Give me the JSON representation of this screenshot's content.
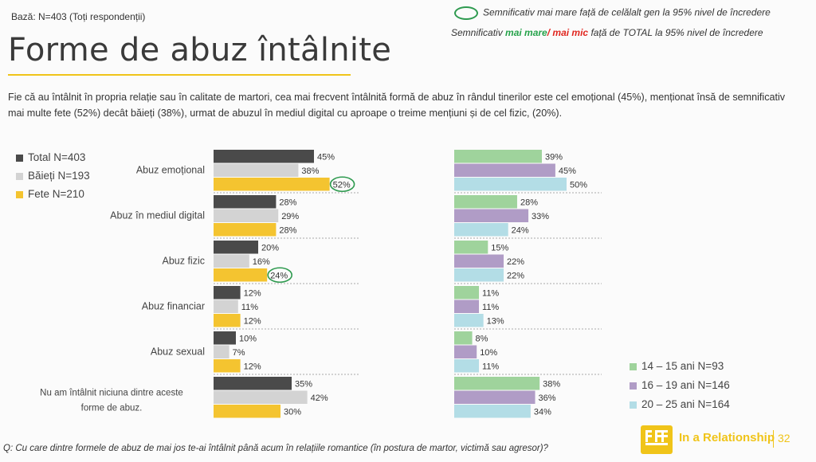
{
  "header": {
    "base": "Bază: N=403 (Toți respondenții)",
    "title": "Forme de abuz întâlnite",
    "sig_other_gender": "Semnificativ mai mare față de celălalt gen la 95% nivel de încredere",
    "sig_total_prefix": "Semnificativ ",
    "sig_total_higher": "mai mare",
    "sig_total_sep": "/ ",
    "sig_total_lower": "mai mic",
    "sig_total_suffix": " față de TOTAL la 95% nivel de încredere"
  },
  "summary": "Fie că au întâlnit în propria relație sau în calitate de martori, cea mai frecvent întâlnită formă de abuz în rândul tinerilor este cel emoțional (45%), menționat însă de semnificativ mai multe fete (52%) decât băieți (38%), urmat de abuzul în mediul digital cu aproape o treime mențiuni și de cel fizic, (20%).",
  "chart_data": [
    {
      "type": "bar",
      "orientation": "horizontal",
      "categories": [
        "Abuz emoțional",
        "Abuz în mediul digital",
        "Abuz fizic",
        "Abuz financiar",
        "Abuz sexual",
        "Nu am întâlnit niciuna dintre aceste forme de abuz."
      ],
      "series": [
        {
          "name": "Total N=403",
          "color": "#4a4a4a",
          "values": [
            45,
            28,
            20,
            12,
            10,
            35
          ]
        },
        {
          "name": "Băieți N=193",
          "color": "#d3d3d3",
          "values": [
            38,
            29,
            16,
            11,
            7,
            42
          ]
        },
        {
          "name": "Fete N=210",
          "color": "#f4c430",
          "values": [
            52,
            28,
            24,
            12,
            12,
            30
          ]
        }
      ],
      "value_suffix": "%",
      "highlighted": [
        {
          "series": 2,
          "category": 0
        },
        {
          "series": 2,
          "category": 2
        }
      ],
      "legend": "top-left",
      "grid": false
    },
    {
      "type": "bar",
      "orientation": "horizontal",
      "categories": [
        "Abuz emoțional",
        "Abuz în mediul digital",
        "Abuz fizic",
        "Abuz financiar",
        "Abuz sexual",
        "Nu am întâlnit niciuna dintre aceste forme de abuz."
      ],
      "series": [
        {
          "name": "14 – 15 ani N=93",
          "color": "#9fd39c",
          "values": [
            39,
            28,
            15,
            11,
            8,
            38
          ]
        },
        {
          "name": "16 – 19 ani N=146",
          "color": "#b09cc6",
          "values": [
            45,
            33,
            22,
            11,
            10,
            36
          ]
        },
        {
          "name": "20 – 25 ani N=164",
          "color": "#b3dde6",
          "values": [
            50,
            24,
            22,
            13,
            11,
            34
          ]
        }
      ],
      "value_suffix": "%",
      "legend": "bottom-right",
      "grid": false
    }
  ],
  "footer": {
    "question": "Q: Cu care dintre formele de abuz de mai jos te-ai întâlnit până acum în relațiile romantice (în postura de martor, victimă sau agresor)?",
    "brand": "In a Relationship",
    "page_number": "32"
  }
}
